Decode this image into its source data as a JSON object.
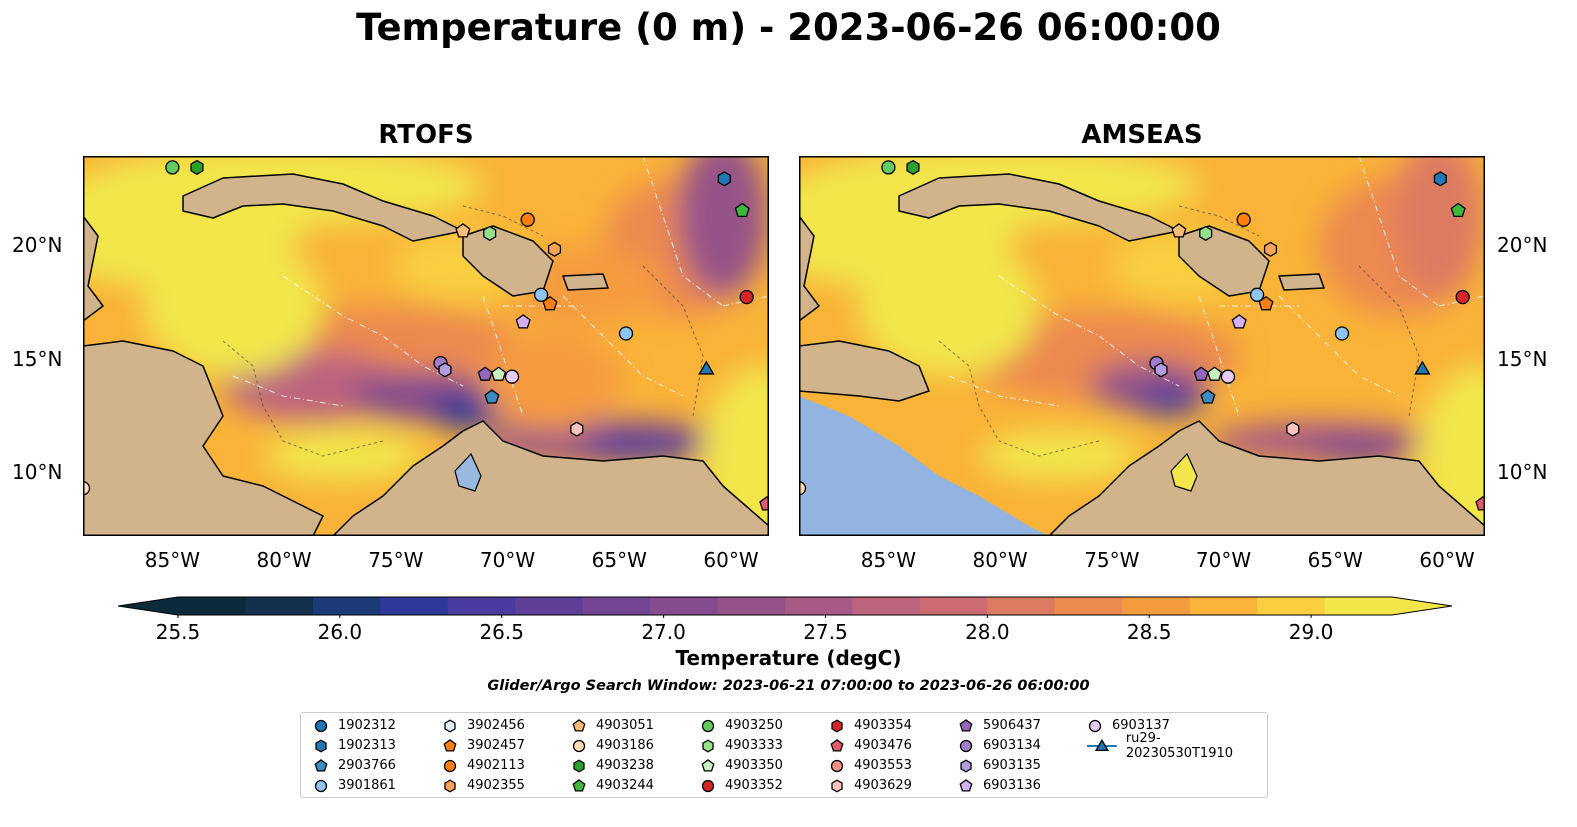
{
  "title": "Temperature (0 m) - 2023-06-26 06:00:00",
  "panels": [
    {
      "title": "RTOFS"
    },
    {
      "title": "AMSEAS"
    }
  ],
  "axes": {
    "lon_ticks": [
      "85°W",
      "80°W",
      "75°W",
      "70°W",
      "65°W",
      "60°W"
    ],
    "lat_ticks": [
      "20°N",
      "15°N",
      "10°N"
    ],
    "lon_range": [
      -89,
      -58.3
    ],
    "lat_range": [
      7.2,
      23.9
    ]
  },
  "colorbar": {
    "label": "Temperature (degC)",
    "ticks": [
      "25.5",
      "26.0",
      "26.5",
      "27.0",
      "27.5",
      "28.0",
      "28.5",
      "29.0"
    ],
    "range": [
      25.5,
      29.25
    ],
    "extend": "both",
    "colors": [
      "#0d2a3d",
      "#14304f",
      "#1c3a78",
      "#2e379a",
      "#4a3c9e",
      "#603f98",
      "#734592",
      "#844b8e",
      "#955288",
      "#a85a84",
      "#bc647e",
      "#cc6c72",
      "#dd7a62",
      "#ec8a4f",
      "#f59b3f",
      "#f9b338",
      "#f9cf40",
      "#f2e64b"
    ]
  },
  "search_window": "Glider/Argo Search Window: 2023-06-21 07:00:00 to 2023-06-26 06:00:00",
  "legend": [
    {
      "label": "1902312",
      "marker": "circle",
      "color": "#1f77b4"
    },
    {
      "label": "1902313",
      "marker": "hexagon",
      "color": "#1f77b4"
    },
    {
      "label": "2903766",
      "marker": "pentagon",
      "color": "#3b8bc2"
    },
    {
      "label": "3901861",
      "marker": "circle",
      "color": "#8dc4f0"
    },
    {
      "label": "3902456",
      "marker": "hexagon",
      "color": "#deeefc"
    },
    {
      "label": "3902457",
      "marker": "pentagon",
      "color": "#ff7f0e"
    },
    {
      "label": "4902113",
      "marker": "circle",
      "color": "#ff7f0e"
    },
    {
      "label": "4902355",
      "marker": "hexagon",
      "color": "#ffa25a"
    },
    {
      "label": "4903051",
      "marker": "pentagon",
      "color": "#ffbb78"
    },
    {
      "label": "4903186",
      "marker": "circle",
      "color": "#ffdab5"
    },
    {
      "label": "4903238",
      "marker": "hexagon",
      "color": "#2ca02c"
    },
    {
      "label": "4903244",
      "marker": "pentagon",
      "color": "#3cb83c"
    },
    {
      "label": "4903250",
      "marker": "circle",
      "color": "#62cc62"
    },
    {
      "label": "4903333",
      "marker": "hexagon",
      "color": "#98df8a"
    },
    {
      "label": "4903350",
      "marker": "pentagon",
      "color": "#c9f2c0"
    },
    {
      "label": "4903352",
      "marker": "circle",
      "color": "#d62728"
    },
    {
      "label": "4903354",
      "marker": "hexagon",
      "color": "#d62728"
    },
    {
      "label": "4903476",
      "marker": "pentagon",
      "color": "#e35a6a"
    },
    {
      "label": "4903553",
      "marker": "circle",
      "color": "#f08e88"
    },
    {
      "label": "4903629",
      "marker": "hexagon",
      "color": "#ffc4c0"
    },
    {
      "label": "5906437",
      "marker": "pentagon",
      "color": "#9467bd"
    },
    {
      "label": "6903134",
      "marker": "circle",
      "color": "#a07ccc"
    },
    {
      "label": "6903135",
      "marker": "hexagon",
      "color": "#b59be0"
    },
    {
      "label": "6903136",
      "marker": "pentagon",
      "color": "#d2b0f2"
    },
    {
      "label": "6903137",
      "marker": "circle",
      "color": "#e6ccfa"
    },
    {
      "label": "ru29-20230530T1910",
      "marker": "triangle-line",
      "color": "#1f77b4"
    }
  ],
  "floats": [
    {
      "label": "1902313",
      "lon": -60.3,
      "lat": 22.9
    },
    {
      "label": "4903244",
      "lon": -59.5,
      "lat": 21.5
    },
    {
      "label": "4903352",
      "lon": -59.3,
      "lat": 17.7
    },
    {
      "label": "4903250",
      "lon": -85.0,
      "lat": 23.4
    },
    {
      "label": "4903238",
      "lon": -83.9,
      "lat": 23.4
    },
    {
      "label": "4903051",
      "lon": -72.0,
      "lat": 20.6
    },
    {
      "label": "4903333",
      "lon": -70.8,
      "lat": 20.5
    },
    {
      "label": "4902113",
      "lon": -69.1,
      "lat": 21.1
    },
    {
      "label": "4902355",
      "lon": -67.9,
      "lat": 19.8
    },
    {
      "label": "3901861",
      "lon": -68.5,
      "lat": 17.8
    },
    {
      "label": "3902457",
      "lon": -68.1,
      "lat": 17.4
    },
    {
      "label": "6903136",
      "lon": -69.3,
      "lat": 16.6
    },
    {
      "label": "3901861",
      "lon": -64.7,
      "lat": 16.1
    },
    {
      "label": "6903134",
      "lon": -73.0,
      "lat": 14.8
    },
    {
      "label": "6903135",
      "lon": -72.8,
      "lat": 14.5
    },
    {
      "label": "5906437",
      "lon": -71.0,
      "lat": 14.3
    },
    {
      "label": "4903350",
      "lon": -70.4,
      "lat": 14.3
    },
    {
      "label": "6903137",
      "lon": -69.8,
      "lat": 14.2
    },
    {
      "label": "2903766",
      "lon": -70.7,
      "lat": 13.3
    },
    {
      "label": "4903629",
      "lon": -66.9,
      "lat": 11.9
    },
    {
      "label": "ru29-20230530T1910",
      "lon": -61.1,
      "lat": 14.5
    },
    {
      "label": "4903476",
      "lon": -58.4,
      "lat": 8.6
    },
    {
      "label": "4903186",
      "lon": -89.0,
      "lat": 9.3
    }
  ]
}
